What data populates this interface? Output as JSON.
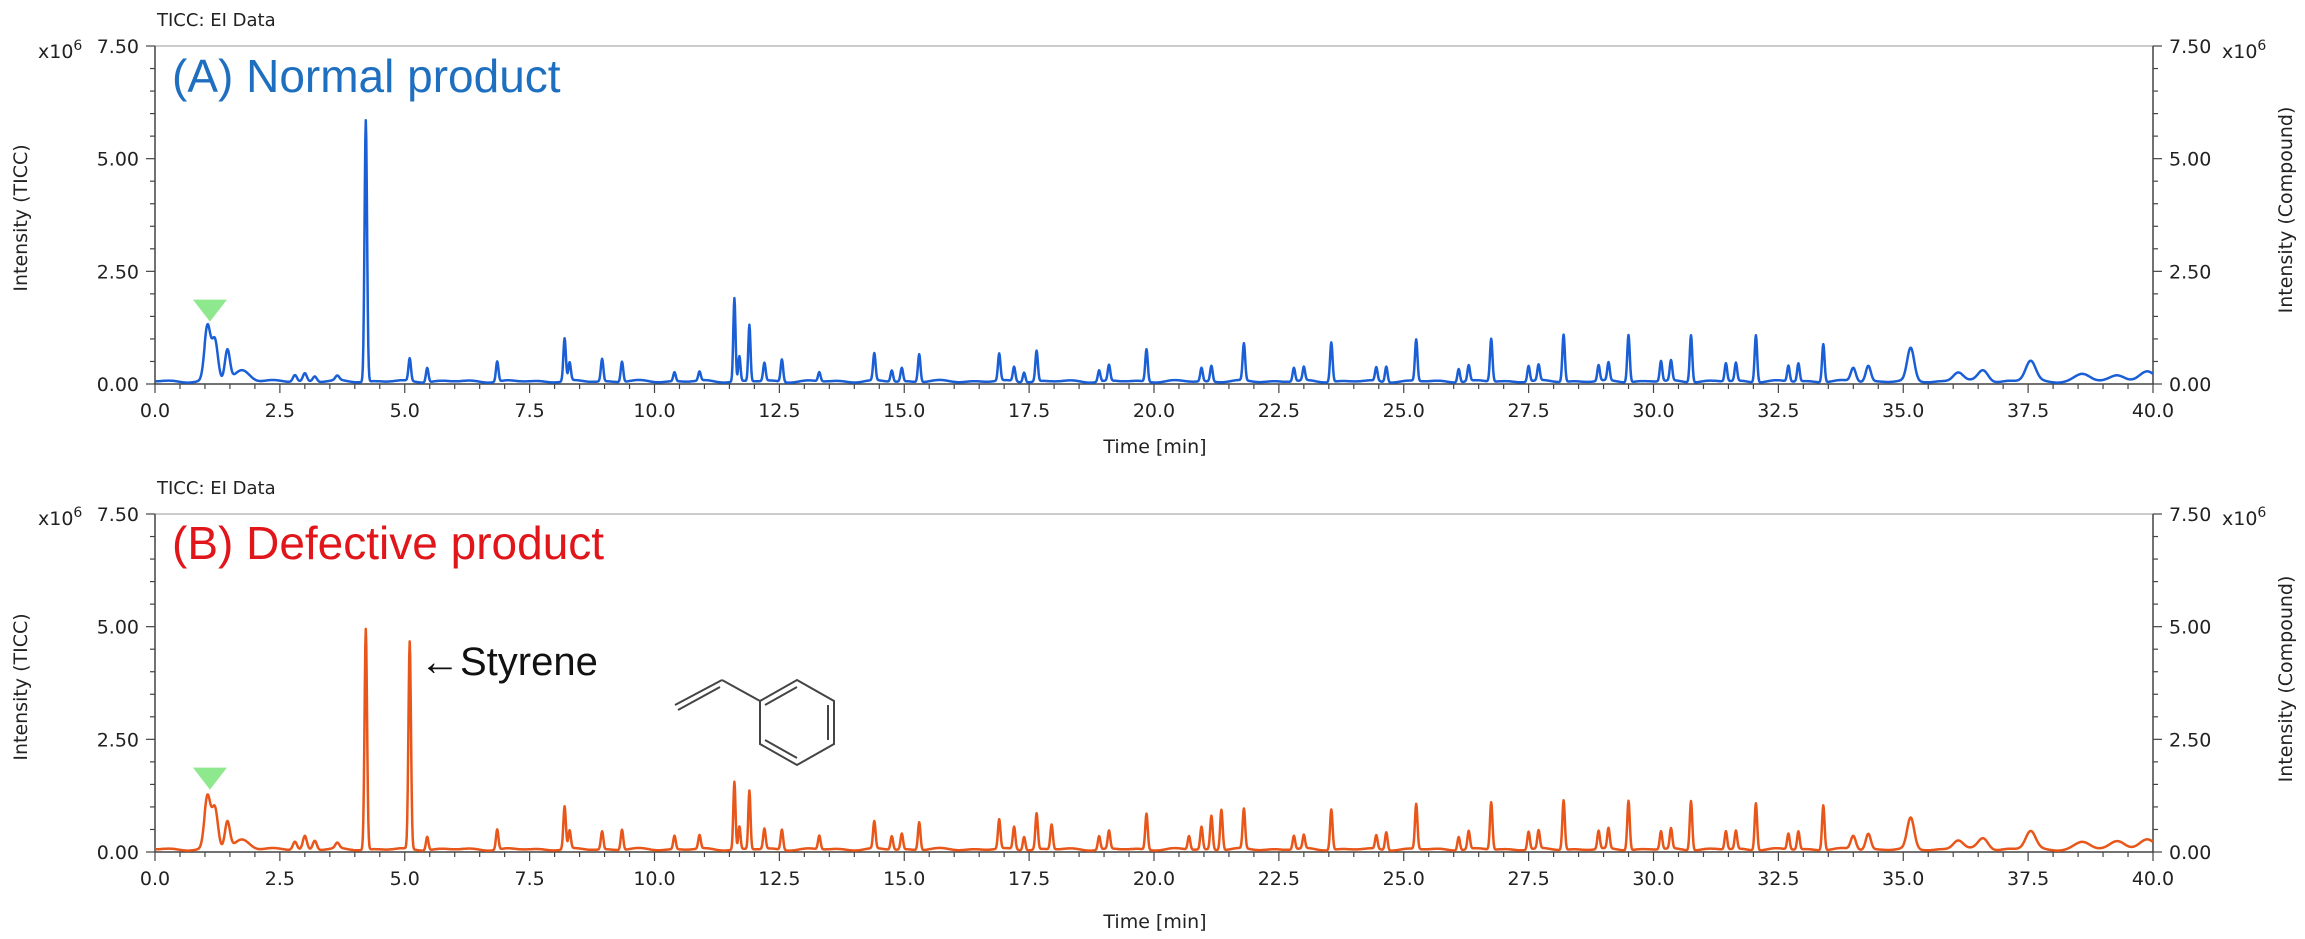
{
  "colors": {
    "panel_a": "#1a5fd6",
    "panel_b": "#e8561a",
    "panel_a_title": "#1f6fc0",
    "panel_b_title": "#e0161b",
    "marker": "#8ee88e"
  },
  "chart_data": [
    {
      "type": "line",
      "data_source": "TICC: EI Data",
      "title": "(A) Normal product",
      "xlabel": "Time [min]",
      "ylabel": "Intensity (TICC)",
      "ylabel_right": "Intensity (Compound)",
      "y_multiplier": "x10",
      "y_multiplier_exp": "6",
      "xlim": [
        0,
        40
      ],
      "ylim": [
        0,
        7.5
      ],
      "xticks": [
        0.0,
        2.5,
        5.0,
        7.5,
        10.0,
        12.5,
        15.0,
        17.5,
        20.0,
        22.5,
        25.0,
        27.5,
        30.0,
        32.5,
        35.0,
        37.5,
        40.0
      ],
      "xtick_labels": [
        "0.0",
        "2.5",
        "5.0",
        "7.5",
        "10.0",
        "12.5",
        "15.0",
        "17.5",
        "20.0",
        "22.5",
        "25.0",
        "27.5",
        "30.0",
        "32.5",
        "35.0",
        "37.5",
        "40.0"
      ],
      "yticks": [
        0,
        2.5,
        5.0,
        7.5
      ],
      "ytick_labels": [
        "0.00",
        "2.50",
        "5.00",
        "7.50"
      ],
      "baseline": 0.06,
      "marker_x": 1.1,
      "series": [
        {
          "peaks": [
            {
              "x": 1.05,
              "y": 1.2,
              "w": 0.06
            },
            {
              "x": 1.2,
              "y": 0.9,
              "w": 0.06
            },
            {
              "x": 1.45,
              "y": 0.68,
              "w": 0.05
            },
            {
              "x": 1.75,
              "y": 0.25,
              "w": 0.15
            },
            {
              "x": 2.8,
              "y": 0.15,
              "w": 0.04
            },
            {
              "x": 3.0,
              "y": 0.18,
              "w": 0.04
            },
            {
              "x": 3.2,
              "y": 0.12,
              "w": 0.04
            },
            {
              "x": 3.65,
              "y": 0.1,
              "w": 0.04
            },
            {
              "x": 4.22,
              "y": 5.8,
              "w": 0.025
            },
            {
              "x": 5.1,
              "y": 0.5,
              "w": 0.025
            },
            {
              "x": 5.45,
              "y": 0.32,
              "w": 0.025
            },
            {
              "x": 6.85,
              "y": 0.45,
              "w": 0.025
            },
            {
              "x": 8.2,
              "y": 0.95,
              "w": 0.025
            },
            {
              "x": 8.3,
              "y": 0.4,
              "w": 0.025
            },
            {
              "x": 8.95,
              "y": 0.5,
              "w": 0.025
            },
            {
              "x": 9.35,
              "y": 0.45,
              "w": 0.025
            },
            {
              "x": 10.4,
              "y": 0.2,
              "w": 0.025
            },
            {
              "x": 10.9,
              "y": 0.2,
              "w": 0.025
            },
            {
              "x": 11.6,
              "y": 1.85,
              "w": 0.022
            },
            {
              "x": 11.7,
              "y": 0.55,
              "w": 0.022
            },
            {
              "x": 11.9,
              "y": 1.25,
              "w": 0.022
            },
            {
              "x": 12.2,
              "y": 0.4,
              "w": 0.025
            },
            {
              "x": 12.55,
              "y": 0.5,
              "w": 0.025
            },
            {
              "x": 13.3,
              "y": 0.2,
              "w": 0.025
            },
            {
              "x": 14.4,
              "y": 0.6,
              "w": 0.025
            },
            {
              "x": 14.75,
              "y": 0.25,
              "w": 0.025
            },
            {
              "x": 14.95,
              "y": 0.3,
              "w": 0.025
            },
            {
              "x": 15.3,
              "y": 0.62,
              "w": 0.025
            },
            {
              "x": 16.9,
              "y": 0.6,
              "w": 0.025
            },
            {
              "x": 17.2,
              "y": 0.32,
              "w": 0.025
            },
            {
              "x": 17.4,
              "y": 0.22,
              "w": 0.025
            },
            {
              "x": 17.65,
              "y": 0.68,
              "w": 0.025
            },
            {
              "x": 18.9,
              "y": 0.25,
              "w": 0.025
            },
            {
              "x": 19.1,
              "y": 0.35,
              "w": 0.025
            },
            {
              "x": 19.85,
              "y": 0.72,
              "w": 0.025
            },
            {
              "x": 20.95,
              "y": 0.3,
              "w": 0.025
            },
            {
              "x": 21.15,
              "y": 0.35,
              "w": 0.025
            },
            {
              "x": 21.8,
              "y": 0.82,
              "w": 0.025
            },
            {
              "x": 22.8,
              "y": 0.3,
              "w": 0.025
            },
            {
              "x": 23.0,
              "y": 0.3,
              "w": 0.025
            },
            {
              "x": 23.55,
              "y": 0.88,
              "w": 0.025
            },
            {
              "x": 24.45,
              "y": 0.3,
              "w": 0.025
            },
            {
              "x": 24.65,
              "y": 0.35,
              "w": 0.025
            },
            {
              "x": 25.25,
              "y": 0.92,
              "w": 0.025
            },
            {
              "x": 26.1,
              "y": 0.3,
              "w": 0.025
            },
            {
              "x": 26.3,
              "y": 0.35,
              "w": 0.025
            },
            {
              "x": 26.75,
              "y": 0.95,
              "w": 0.025
            },
            {
              "x": 27.5,
              "y": 0.35,
              "w": 0.025
            },
            {
              "x": 27.7,
              "y": 0.35,
              "w": 0.025
            },
            {
              "x": 28.2,
              "y": 1.05,
              "w": 0.025
            },
            {
              "x": 28.9,
              "y": 0.35,
              "w": 0.025
            },
            {
              "x": 29.1,
              "y": 0.4,
              "w": 0.025
            },
            {
              "x": 29.5,
              "y": 1.05,
              "w": 0.025
            },
            {
              "x": 30.15,
              "y": 0.45,
              "w": 0.025
            },
            {
              "x": 30.35,
              "y": 0.45,
              "w": 0.025
            },
            {
              "x": 30.75,
              "y": 1.05,
              "w": 0.025
            },
            {
              "x": 31.45,
              "y": 0.4,
              "w": 0.025
            },
            {
              "x": 31.65,
              "y": 0.4,
              "w": 0.025
            },
            {
              "x": 32.05,
              "y": 1.05,
              "w": 0.025
            },
            {
              "x": 32.7,
              "y": 0.35,
              "w": 0.025
            },
            {
              "x": 32.9,
              "y": 0.4,
              "w": 0.025
            },
            {
              "x": 33.4,
              "y": 0.85,
              "w": 0.025
            },
            {
              "x": 34.0,
              "y": 0.3,
              "w": 0.05
            },
            {
              "x": 34.3,
              "y": 0.35,
              "w": 0.05
            },
            {
              "x": 35.15,
              "y": 0.72,
              "w": 0.07
            },
            {
              "x": 36.1,
              "y": 0.2,
              "w": 0.1
            },
            {
              "x": 36.6,
              "y": 0.25,
              "w": 0.1
            },
            {
              "x": 37.55,
              "y": 0.45,
              "w": 0.1
            },
            {
              "x": 38.6,
              "y": 0.15,
              "w": 0.15
            },
            {
              "x": 39.3,
              "y": 0.15,
              "w": 0.15
            },
            {
              "x": 39.9,
              "y": 0.2,
              "w": 0.15
            }
          ]
        }
      ]
    },
    {
      "type": "line",
      "data_source": "TICC: EI Data",
      "title": "(B) Defective product",
      "xlabel": "Time [min]",
      "ylabel": "Intensity (TICC)",
      "ylabel_right": "Intensity (Compound)",
      "y_multiplier": "x10",
      "y_multiplier_exp": "6",
      "xlim": [
        0,
        40
      ],
      "ylim": [
        0,
        7.5
      ],
      "xticks": [
        0.0,
        2.5,
        5.0,
        7.5,
        10.0,
        12.5,
        15.0,
        17.5,
        20.0,
        22.5,
        25.0,
        27.5,
        30.0,
        32.5,
        35.0,
        37.5,
        40.0
      ],
      "xtick_labels": [
        "0.0",
        "2.5",
        "5.0",
        "7.5",
        "10.0",
        "12.5",
        "15.0",
        "17.5",
        "20.0",
        "22.5",
        "25.0",
        "27.5",
        "30.0",
        "32.5",
        "35.0",
        "37.5",
        "40.0"
      ],
      "yticks": [
        0,
        2.5,
        5.0,
        7.5
      ],
      "ytick_labels": [
        "0.00",
        "2.50",
        "5.00",
        "7.50"
      ],
      "baseline": 0.06,
      "marker_x": 1.1,
      "annotation": "←Styrene",
      "series": [
        {
          "peaks": [
            {
              "x": 1.05,
              "y": 1.15,
              "w": 0.06
            },
            {
              "x": 1.2,
              "y": 0.9,
              "w": 0.06
            },
            {
              "x": 1.45,
              "y": 0.6,
              "w": 0.05
            },
            {
              "x": 1.75,
              "y": 0.22,
              "w": 0.15
            },
            {
              "x": 2.8,
              "y": 0.18,
              "w": 0.04
            },
            {
              "x": 3.0,
              "y": 0.3,
              "w": 0.04
            },
            {
              "x": 3.2,
              "y": 0.2,
              "w": 0.04
            },
            {
              "x": 3.65,
              "y": 0.12,
              "w": 0.04
            },
            {
              "x": 4.22,
              "y": 4.9,
              "w": 0.025
            },
            {
              "x": 5.1,
              "y": 4.6,
              "w": 0.025
            },
            {
              "x": 5.45,
              "y": 0.3,
              "w": 0.025
            },
            {
              "x": 6.85,
              "y": 0.45,
              "w": 0.025
            },
            {
              "x": 8.2,
              "y": 0.95,
              "w": 0.025
            },
            {
              "x": 8.3,
              "y": 0.4,
              "w": 0.025
            },
            {
              "x": 8.95,
              "y": 0.4,
              "w": 0.025
            },
            {
              "x": 9.35,
              "y": 0.45,
              "w": 0.025
            },
            {
              "x": 10.4,
              "y": 0.3,
              "w": 0.025
            },
            {
              "x": 10.9,
              "y": 0.3,
              "w": 0.025
            },
            {
              "x": 11.6,
              "y": 1.5,
              "w": 0.022
            },
            {
              "x": 11.7,
              "y": 0.5,
              "w": 0.022
            },
            {
              "x": 11.9,
              "y": 1.3,
              "w": 0.022
            },
            {
              "x": 12.2,
              "y": 0.45,
              "w": 0.025
            },
            {
              "x": 12.55,
              "y": 0.45,
              "w": 0.025
            },
            {
              "x": 13.3,
              "y": 0.3,
              "w": 0.025
            },
            {
              "x": 14.4,
              "y": 0.6,
              "w": 0.025
            },
            {
              "x": 14.75,
              "y": 0.3,
              "w": 0.025
            },
            {
              "x": 14.95,
              "y": 0.35,
              "w": 0.025
            },
            {
              "x": 15.3,
              "y": 0.62,
              "w": 0.025
            },
            {
              "x": 16.9,
              "y": 0.65,
              "w": 0.025
            },
            {
              "x": 17.2,
              "y": 0.5,
              "w": 0.025
            },
            {
              "x": 17.4,
              "y": 0.3,
              "w": 0.025
            },
            {
              "x": 17.65,
              "y": 0.8,
              "w": 0.025
            },
            {
              "x": 17.95,
              "y": 0.55,
              "w": 0.025
            },
            {
              "x": 18.9,
              "y": 0.3,
              "w": 0.025
            },
            {
              "x": 19.1,
              "y": 0.4,
              "w": 0.025
            },
            {
              "x": 19.85,
              "y": 0.8,
              "w": 0.025
            },
            {
              "x": 20.7,
              "y": 0.3,
              "w": 0.025
            },
            {
              "x": 20.95,
              "y": 0.5,
              "w": 0.025
            },
            {
              "x": 21.15,
              "y": 0.75,
              "w": 0.025
            },
            {
              "x": 21.35,
              "y": 0.9,
              "w": 0.025
            },
            {
              "x": 21.8,
              "y": 0.88,
              "w": 0.025
            },
            {
              "x": 22.8,
              "y": 0.3,
              "w": 0.025
            },
            {
              "x": 23.0,
              "y": 0.3,
              "w": 0.025
            },
            {
              "x": 23.55,
              "y": 0.9,
              "w": 0.025
            },
            {
              "x": 24.45,
              "y": 0.3,
              "w": 0.025
            },
            {
              "x": 24.65,
              "y": 0.4,
              "w": 0.025
            },
            {
              "x": 25.25,
              "y": 1.0,
              "w": 0.025
            },
            {
              "x": 26.1,
              "y": 0.3,
              "w": 0.025
            },
            {
              "x": 26.3,
              "y": 0.4,
              "w": 0.025
            },
            {
              "x": 26.75,
              "y": 1.05,
              "w": 0.025
            },
            {
              "x": 27.5,
              "y": 0.4,
              "w": 0.025
            },
            {
              "x": 27.7,
              "y": 0.4,
              "w": 0.025
            },
            {
              "x": 28.2,
              "y": 1.1,
              "w": 0.025
            },
            {
              "x": 28.9,
              "y": 0.4,
              "w": 0.025
            },
            {
              "x": 29.1,
              "y": 0.45,
              "w": 0.025
            },
            {
              "x": 29.5,
              "y": 1.1,
              "w": 0.025
            },
            {
              "x": 30.15,
              "y": 0.4,
              "w": 0.025
            },
            {
              "x": 30.35,
              "y": 0.45,
              "w": 0.025
            },
            {
              "x": 30.75,
              "y": 1.1,
              "w": 0.025
            },
            {
              "x": 31.45,
              "y": 0.4,
              "w": 0.025
            },
            {
              "x": 31.65,
              "y": 0.4,
              "w": 0.025
            },
            {
              "x": 32.05,
              "y": 1.05,
              "w": 0.025
            },
            {
              "x": 32.7,
              "y": 0.35,
              "w": 0.025
            },
            {
              "x": 32.9,
              "y": 0.4,
              "w": 0.025
            },
            {
              "x": 33.4,
              "y": 1.0,
              "w": 0.025
            },
            {
              "x": 34.0,
              "y": 0.3,
              "w": 0.05
            },
            {
              "x": 34.3,
              "y": 0.35,
              "w": 0.05
            },
            {
              "x": 35.15,
              "y": 0.68,
              "w": 0.07
            },
            {
              "x": 36.1,
              "y": 0.2,
              "w": 0.1
            },
            {
              "x": 36.6,
              "y": 0.25,
              "w": 0.1
            },
            {
              "x": 37.55,
              "y": 0.4,
              "w": 0.1
            },
            {
              "x": 38.6,
              "y": 0.15,
              "w": 0.15
            },
            {
              "x": 39.3,
              "y": 0.2,
              "w": 0.15
            },
            {
              "x": 39.9,
              "y": 0.2,
              "w": 0.15
            }
          ]
        }
      ]
    }
  ]
}
